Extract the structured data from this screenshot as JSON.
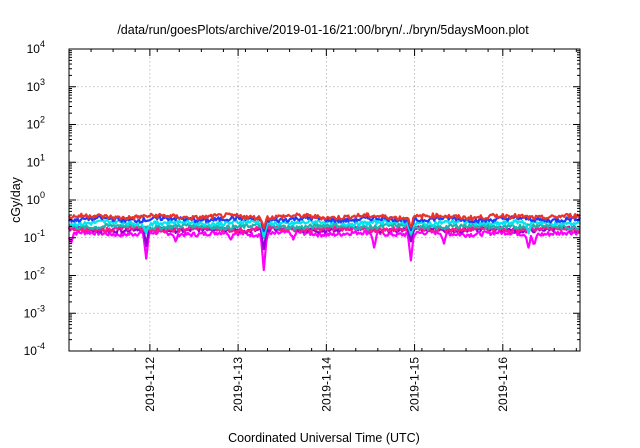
{
  "chart_data": {
    "type": "line",
    "title": "/data/run/goesPlots/archive/2019-01-16/21:00/bryn/../bryn/5daysMoon.plot",
    "xlabel": "Coordinated Universal Time (UTC)",
    "ylabel": "cGy/day",
    "yscale": "log",
    "ylim": [
      0.0001,
      10000
    ],
    "xlim": [
      "2019-01-11T02:00",
      "2019-01-16T21:00"
    ],
    "grid": true,
    "y_ticks": [
      {
        "value": 0.0001,
        "base": "10",
        "exp": "-4"
      },
      {
        "value": 0.001,
        "base": "10",
        "exp": "-3"
      },
      {
        "value": 0.01,
        "base": "10",
        "exp": "-2"
      },
      {
        "value": 0.1,
        "base": "10",
        "exp": "-1"
      },
      {
        "value": 1,
        "base": "10",
        "exp": "0"
      },
      {
        "value": 10,
        "base": "10",
        "exp": "1"
      },
      {
        "value": 100,
        "base": "10",
        "exp": "2"
      },
      {
        "value": 1000,
        "base": "10",
        "exp": "3"
      },
      {
        "value": 10000,
        "base": "10",
        "exp": "4"
      }
    ],
    "x_ticks": [
      {
        "value": "2019-01-12T00:00",
        "label": "2019-1-12"
      },
      {
        "value": "2019-01-13T00:00",
        "label": "2019-1-13"
      },
      {
        "value": "2019-01-14T00:00",
        "label": "2019-1-14"
      },
      {
        "value": "2019-01-15T00:00",
        "label": "2019-1-15"
      },
      {
        "value": "2019-01-16T00:00",
        "label": "2019-1-16"
      }
    ],
    "series": [
      {
        "color": "#ff00ff",
        "base": 0.13,
        "dips": [
          {
            "t": "2019-01-11T02:30",
            "y": 0.07
          },
          {
            "t": "2019-01-11T23:00",
            "y": 0.028
          },
          {
            "t": "2019-01-12T07:00",
            "y": 0.08
          },
          {
            "t": "2019-01-12T22:00",
            "y": 0.09
          },
          {
            "t": "2019-01-13T07:00",
            "y": 0.014
          },
          {
            "t": "2019-01-13T15:00",
            "y": 0.09
          },
          {
            "t": "2019-01-14T13:00",
            "y": 0.055
          },
          {
            "t": "2019-01-14T23:00",
            "y": 0.025
          },
          {
            "t": "2019-01-15T08:00",
            "y": 0.07
          },
          {
            "t": "2019-01-16T07:00",
            "y": 0.055
          },
          {
            "t": "2019-01-16T08:30",
            "y": 0.06
          }
        ]
      },
      {
        "color": "#9400d3",
        "base": 0.165,
        "dips": [
          {
            "t": "2019-01-11T23:00",
            "y": 0.06
          },
          {
            "t": "2019-01-13T07:00",
            "y": 0.05
          },
          {
            "t": "2019-01-14T23:00",
            "y": 0.08
          }
        ]
      },
      {
        "color": "#ff1493",
        "base": 0.17,
        "dips": []
      },
      {
        "color": "#20b2aa",
        "base": 0.2,
        "dips": [
          {
            "t": "2019-01-13T07:00",
            "y": 0.1
          },
          {
            "t": "2019-01-14T23:00",
            "y": 0.12
          }
        ]
      },
      {
        "color": "#00e5ee",
        "base": 0.25,
        "dips": [
          {
            "t": "2019-01-11T23:00",
            "y": 0.13
          },
          {
            "t": "2019-01-13T07:00",
            "y": 0.11
          },
          {
            "t": "2019-01-14T23:00",
            "y": 0.13
          },
          {
            "t": "2019-01-16T07:00",
            "y": 0.13
          }
        ]
      },
      {
        "color": "#1e3cff",
        "base": 0.31,
        "dips": [
          {
            "t": "2019-01-13T07:00",
            "y": 0.15
          },
          {
            "t": "2019-01-14T23:00",
            "y": 0.16
          }
        ]
      },
      {
        "color": "#e8342a",
        "base": 0.36,
        "dips": [
          {
            "t": "2019-01-13T07:00",
            "y": 0.18
          },
          {
            "t": "2019-01-14T23:00",
            "y": 0.19
          }
        ]
      }
    ]
  }
}
